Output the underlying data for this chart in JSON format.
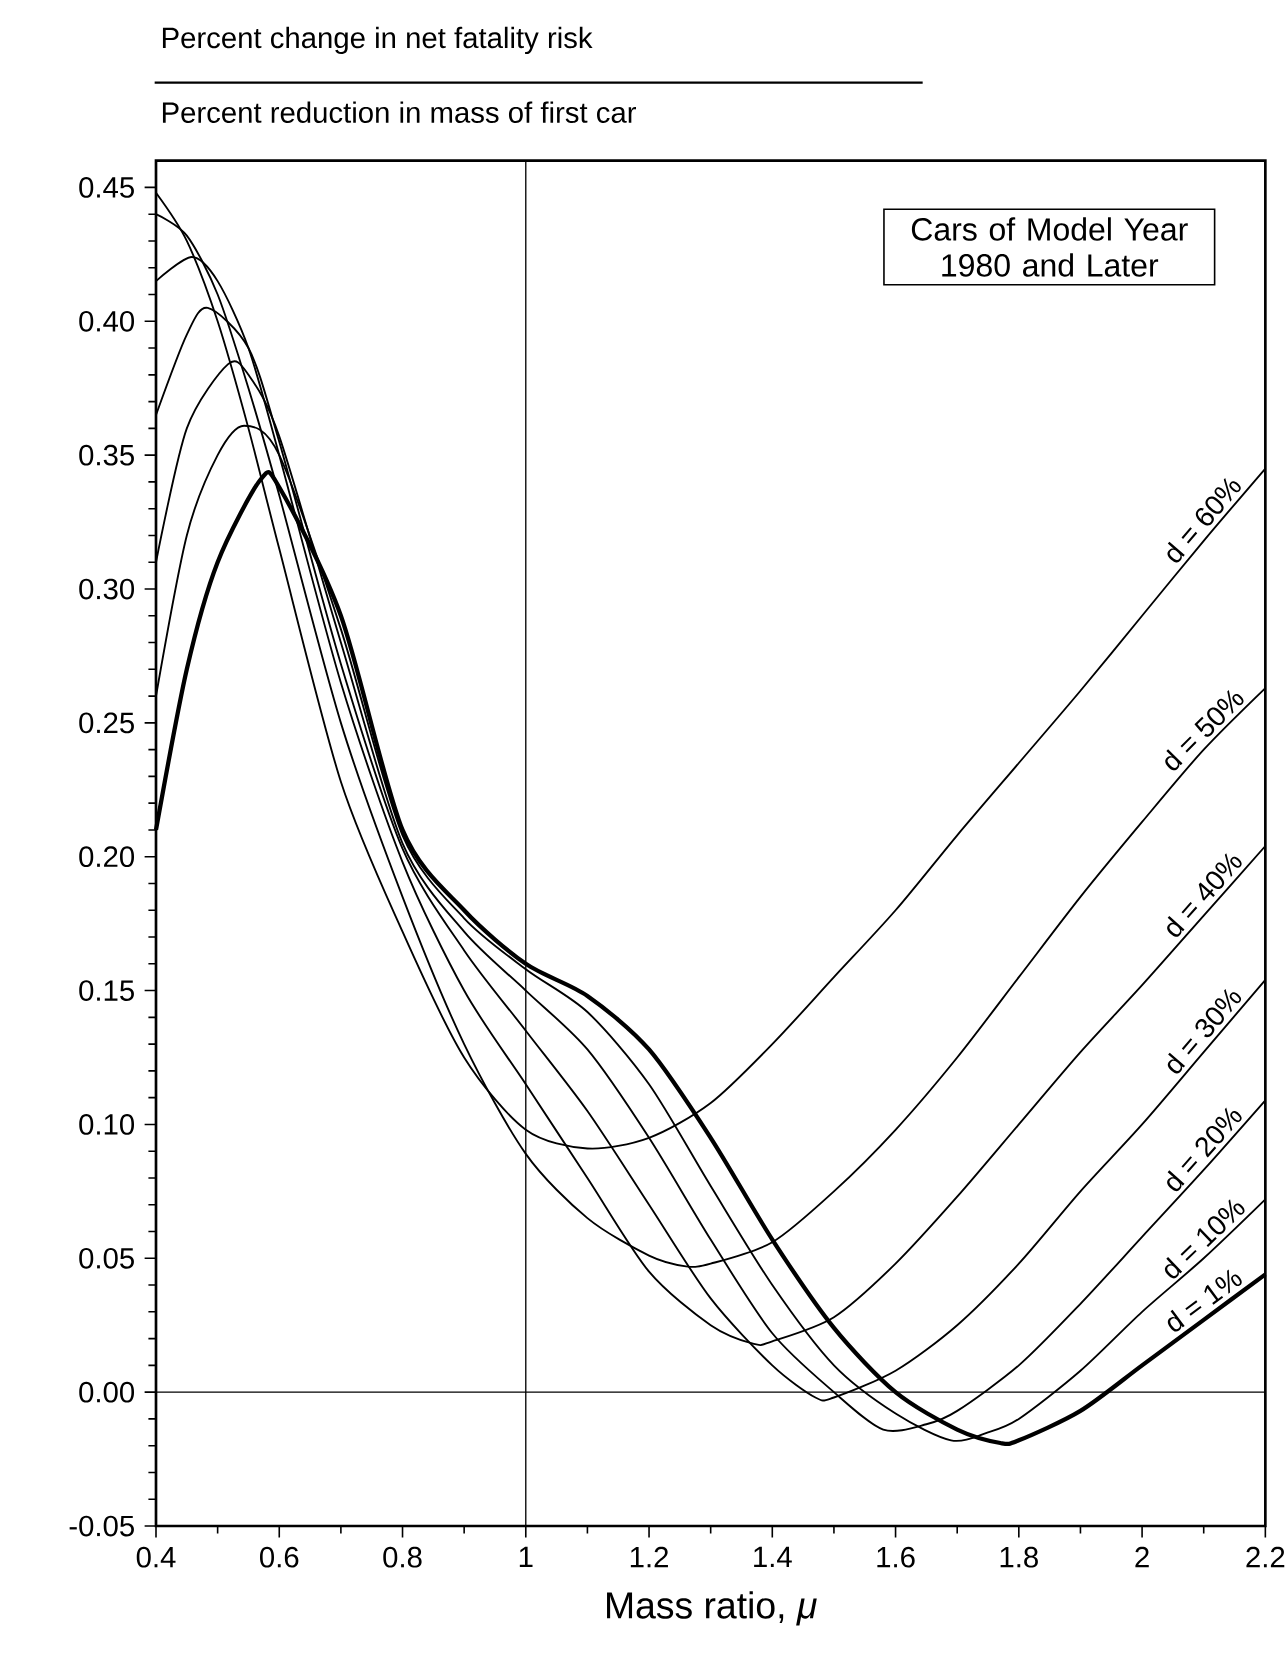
{
  "chart_data": {
    "type": "line",
    "title": "Percent change in net fatality risk",
    "subtitle": "Percent reduction in mass of first car",
    "xlabel": "Mass ratio, *μ*",
    "annotations": [
      "Cars of Model Year 1980 and Later"
    ],
    "xlim": [
      0.4,
      2.2
    ],
    "ylim": [
      -0.05,
      0.46
    ],
    "xticks": [
      0.4,
      0.6,
      0.8,
      1,
      1.2,
      1.4,
      1.6,
      1.8,
      2,
      2.2
    ],
    "yticks": [
      -0.05,
      {
        "value": 0,
        "label": "0.00"
      },
      0.05,
      {
        "value": 0.1,
        "label": "0.10"
      },
      0.15,
      {
        "value": 0.2,
        "label": "0.20"
      },
      0.25,
      {
        "value": 0.3,
        "label": "0.30"
      },
      0.35,
      {
        "value": 0.4,
        "label": "0.40"
      },
      0.45
    ],
    "ref_lines": [
      {
        "axis": "x",
        "value": 1
      },
      {
        "axis": "y",
        "value": 0
      }
    ],
    "marker": "none",
    "line_style": "solid",
    "series": [
      {
        "name": "d = 60%",
        "color": "#000000",
        "x": [
          0.4,
          0.45,
          0.5,
          0.55,
          0.6,
          0.7,
          0.8,
          0.9,
          1.0,
          1.1,
          1.2,
          1.3,
          1.4,
          1.5,
          1.6,
          1.7,
          1.8,
          1.9,
          2.0,
          2.1,
          2.2
        ],
        "values": [
          0.448,
          0.43,
          0.4,
          0.36,
          0.315,
          0.228,
          0.172,
          0.125,
          0.098,
          0.091,
          0.095,
          0.108,
          0.13,
          0.155,
          0.18,
          0.208,
          0.235,
          0.262,
          0.29,
          0.318,
          0.345
        ]
      },
      {
        "name": "d = 50%",
        "color": "#000000",
        "x": [
          0.4,
          0.45,
          0.5,
          0.55,
          0.6,
          0.7,
          0.8,
          0.9,
          1.0,
          1.1,
          1.2,
          1.26,
          1.3,
          1.4,
          1.5,
          1.6,
          1.7,
          1.8,
          1.9,
          2.0,
          2.1,
          2.2
        ],
        "values": [
          0.44,
          0.432,
          0.41,
          0.375,
          0.335,
          0.25,
          0.185,
          0.13,
          0.089,
          0.065,
          0.051,
          0.047,
          0.048,
          0.056,
          0.075,
          0.098,
          0.125,
          0.155,
          0.185,
          0.213,
          0.24,
          0.263
        ]
      },
      {
        "name": "d = 40%",
        "color": "#000000",
        "x": [
          0.4,
          0.458,
          0.5,
          0.55,
          0.6,
          0.7,
          0.8,
          0.9,
          1.0,
          1.1,
          1.2,
          1.3,
          1.37,
          1.4,
          1.5,
          1.6,
          1.7,
          1.8,
          1.9,
          2.0,
          2.1,
          2.2
        ],
        "values": [
          0.415,
          0.424,
          0.415,
          0.39,
          0.35,
          0.265,
          0.198,
          0.15,
          0.115,
          0.08,
          0.045,
          0.025,
          0.018,
          0.019,
          0.028,
          0.048,
          0.073,
          0.1,
          0.127,
          0.152,
          0.178,
          0.204
        ]
      },
      {
        "name": "d = 30%",
        "color": "#000000",
        "x": [
          0.4,
          0.45,
          0.484,
          0.55,
          0.6,
          0.7,
          0.8,
          0.9,
          1.0,
          1.1,
          1.2,
          1.3,
          1.4,
          1.47,
          1.5,
          1.6,
          1.7,
          1.8,
          1.9,
          2.0,
          2.1,
          2.2
        ],
        "values": [
          0.365,
          0.395,
          0.405,
          0.39,
          0.355,
          0.272,
          0.203,
          0.165,
          0.135,
          0.105,
          0.07,
          0.035,
          0.01,
          -0.002,
          -0.002,
          0.008,
          0.025,
          0.048,
          0.075,
          0.1,
          0.127,
          0.154
        ]
      },
      {
        "name": "d = 20%",
        "color": "#000000",
        "x": [
          0.4,
          0.45,
          0.517,
          0.55,
          0.6,
          0.7,
          0.8,
          0.9,
          1.0,
          1.1,
          1.2,
          1.3,
          1.4,
          1.5,
          1.58,
          1.65,
          1.7,
          1.8,
          1.9,
          2.0,
          2.1,
          2.2
        ],
        "values": [
          0.31,
          0.36,
          0.384,
          0.38,
          0.357,
          0.28,
          0.205,
          0.172,
          0.15,
          0.128,
          0.095,
          0.057,
          0.022,
          0.0,
          -0.014,
          -0.012,
          -0.007,
          0.01,
          0.033,
          0.058,
          0.083,
          0.109
        ]
      },
      {
        "name": "d = 10%",
        "color": "#000000",
        "x": [
          0.4,
          0.45,
          0.5,
          0.543,
          0.6,
          0.7,
          0.8,
          0.9,
          1.0,
          1.1,
          1.2,
          1.3,
          1.4,
          1.5,
          1.6,
          1.69,
          1.75,
          1.8,
          1.9,
          2.0,
          2.1,
          2.2
        ],
        "values": [
          0.26,
          0.32,
          0.35,
          0.361,
          0.35,
          0.285,
          0.208,
          0.177,
          0.158,
          0.142,
          0.115,
          0.077,
          0.04,
          0.01,
          -0.008,
          -0.018,
          -0.015,
          -0.01,
          0.008,
          0.03,
          0.05,
          0.072
        ]
      },
      {
        "name": "d = 1%",
        "color": "#000000",
        "x": [
          0.4,
          0.45,
          0.5,
          0.57,
          0.6,
          0.7,
          0.8,
          0.9,
          1.0,
          1.1,
          1.2,
          1.3,
          1.4,
          1.5,
          1.6,
          1.7,
          1.77,
          1.8,
          1.9,
          2.0,
          2.1,
          2.2
        ],
        "values": [
          0.21,
          0.27,
          0.31,
          0.341,
          0.338,
          0.29,
          0.21,
          0.18,
          0.16,
          0.148,
          0.128,
          0.095,
          0.057,
          0.024,
          0.0,
          -0.014,
          -0.019,
          -0.018,
          -0.007,
          0.01,
          0.027,
          0.044
        ]
      }
    ]
  }
}
